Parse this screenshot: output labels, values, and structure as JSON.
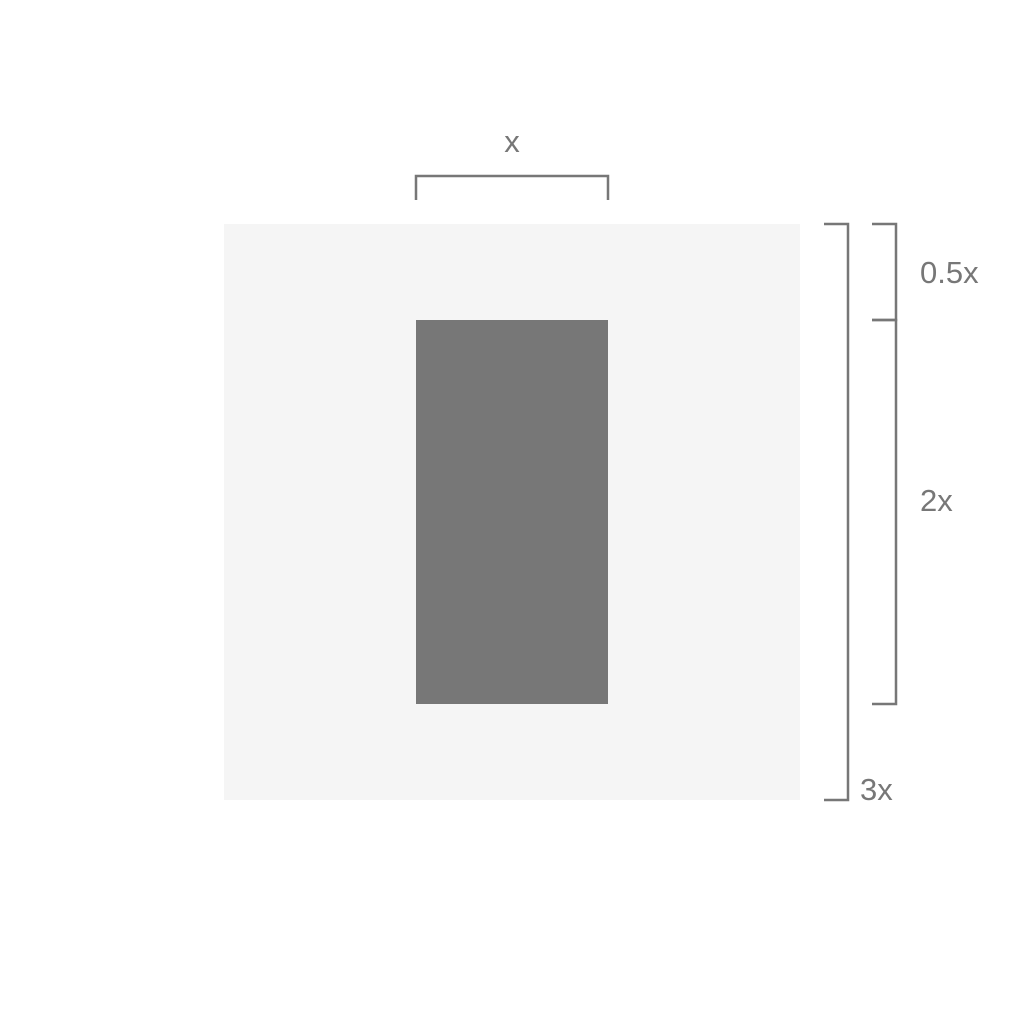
{
  "colors": {
    "background": "#ffffff",
    "outer_square": "#f5f5f5",
    "inner_rectangle": "#777777",
    "bracket_stroke": "#777777",
    "label_text": "#777777"
  },
  "labels": {
    "width_x": "x",
    "top_margin": "0.5x",
    "inner_height": "2x",
    "total_height": "3x"
  }
}
